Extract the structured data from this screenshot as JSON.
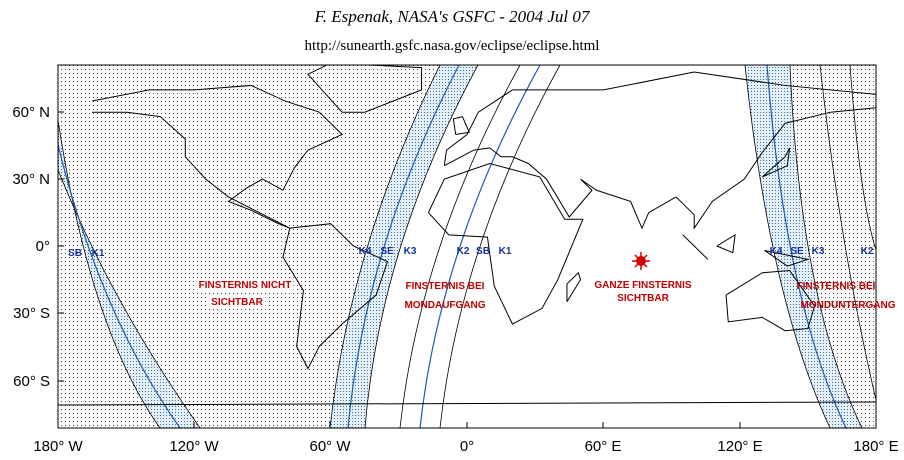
{
  "header": {
    "title": "F. Espenak, NASA's GSFC - 2004 Jul 07",
    "url": "http://sunearth.gsfc.nasa.gov/eclipse/eclipse.html"
  },
  "lat_labels": [
    "60° N",
    "30° N",
    "0°",
    "30° S",
    "60° S"
  ],
  "lon_labels": [
    "180° W",
    "120° W",
    "60° W",
    "0°",
    "60° E",
    "120° E",
    "180° E"
  ],
  "contacts": [
    "SB",
    "K1",
    "K4",
    "SE",
    "K3",
    "K2",
    "SB",
    "K1",
    "K4",
    "SE",
    "K3",
    "K2"
  ],
  "regions": [
    {
      "lines": [
        "FINSTERNIS NICHT",
        "SICHTBAR"
      ]
    },
    {
      "lines": [
        "FINSTERNIS BEI",
        "MONDAUFGANG"
      ]
    },
    {
      "lines": [
        "GANZE FINSTERNIS",
        "SICHTBAR"
      ]
    },
    {
      "lines": [
        "FINSTERNIS BEI",
        "MONDUNTERGANG"
      ]
    }
  ]
}
